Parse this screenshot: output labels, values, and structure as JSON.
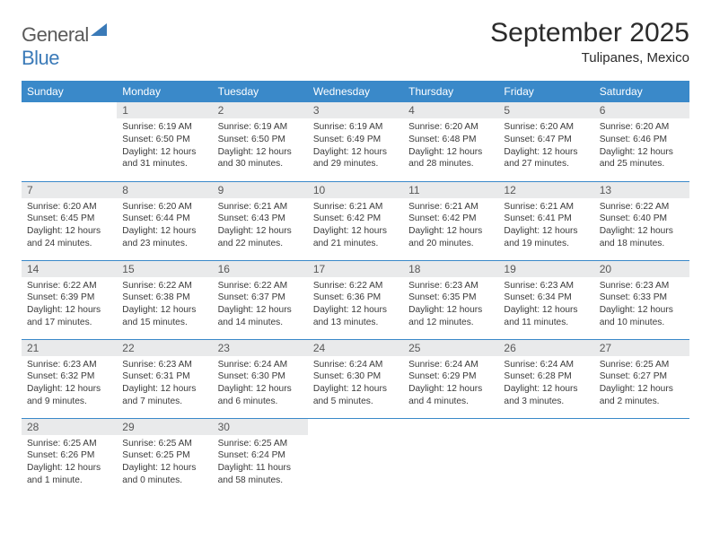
{
  "logo": {
    "text_general": "General",
    "text_blue": "Blue"
  },
  "title": "September 2025",
  "location": "Tulipanes, Mexico",
  "colors": {
    "header_bg": "#3a89c9",
    "daynum_bg": "#e9eaeb",
    "rule": "#3a89c9",
    "text": "#343434",
    "logo_blue": "#3a7ab8"
  },
  "weekdays": [
    "Sunday",
    "Monday",
    "Tuesday",
    "Wednesday",
    "Thursday",
    "Friday",
    "Saturday"
  ],
  "start_offset": 1,
  "days": [
    {
      "n": 1,
      "sunrise": "6:19 AM",
      "sunset": "6:50 PM",
      "daylight": "12 hours and 31 minutes."
    },
    {
      "n": 2,
      "sunrise": "6:19 AM",
      "sunset": "6:50 PM",
      "daylight": "12 hours and 30 minutes."
    },
    {
      "n": 3,
      "sunrise": "6:19 AM",
      "sunset": "6:49 PM",
      "daylight": "12 hours and 29 minutes."
    },
    {
      "n": 4,
      "sunrise": "6:20 AM",
      "sunset": "6:48 PM",
      "daylight": "12 hours and 28 minutes."
    },
    {
      "n": 5,
      "sunrise": "6:20 AM",
      "sunset": "6:47 PM",
      "daylight": "12 hours and 27 minutes."
    },
    {
      "n": 6,
      "sunrise": "6:20 AM",
      "sunset": "6:46 PM",
      "daylight": "12 hours and 25 minutes."
    },
    {
      "n": 7,
      "sunrise": "6:20 AM",
      "sunset": "6:45 PM",
      "daylight": "12 hours and 24 minutes."
    },
    {
      "n": 8,
      "sunrise": "6:20 AM",
      "sunset": "6:44 PM",
      "daylight": "12 hours and 23 minutes."
    },
    {
      "n": 9,
      "sunrise": "6:21 AM",
      "sunset": "6:43 PM",
      "daylight": "12 hours and 22 minutes."
    },
    {
      "n": 10,
      "sunrise": "6:21 AM",
      "sunset": "6:42 PM",
      "daylight": "12 hours and 21 minutes."
    },
    {
      "n": 11,
      "sunrise": "6:21 AM",
      "sunset": "6:42 PM",
      "daylight": "12 hours and 20 minutes."
    },
    {
      "n": 12,
      "sunrise": "6:21 AM",
      "sunset": "6:41 PM",
      "daylight": "12 hours and 19 minutes."
    },
    {
      "n": 13,
      "sunrise": "6:22 AM",
      "sunset": "6:40 PM",
      "daylight": "12 hours and 18 minutes."
    },
    {
      "n": 14,
      "sunrise": "6:22 AM",
      "sunset": "6:39 PM",
      "daylight": "12 hours and 17 minutes."
    },
    {
      "n": 15,
      "sunrise": "6:22 AM",
      "sunset": "6:38 PM",
      "daylight": "12 hours and 15 minutes."
    },
    {
      "n": 16,
      "sunrise": "6:22 AM",
      "sunset": "6:37 PM",
      "daylight": "12 hours and 14 minutes."
    },
    {
      "n": 17,
      "sunrise": "6:22 AM",
      "sunset": "6:36 PM",
      "daylight": "12 hours and 13 minutes."
    },
    {
      "n": 18,
      "sunrise": "6:23 AM",
      "sunset": "6:35 PM",
      "daylight": "12 hours and 12 minutes."
    },
    {
      "n": 19,
      "sunrise": "6:23 AM",
      "sunset": "6:34 PM",
      "daylight": "12 hours and 11 minutes."
    },
    {
      "n": 20,
      "sunrise": "6:23 AM",
      "sunset": "6:33 PM",
      "daylight": "12 hours and 10 minutes."
    },
    {
      "n": 21,
      "sunrise": "6:23 AM",
      "sunset": "6:32 PM",
      "daylight": "12 hours and 9 minutes."
    },
    {
      "n": 22,
      "sunrise": "6:23 AM",
      "sunset": "6:31 PM",
      "daylight": "12 hours and 7 minutes."
    },
    {
      "n": 23,
      "sunrise": "6:24 AM",
      "sunset": "6:30 PM",
      "daylight": "12 hours and 6 minutes."
    },
    {
      "n": 24,
      "sunrise": "6:24 AM",
      "sunset": "6:30 PM",
      "daylight": "12 hours and 5 minutes."
    },
    {
      "n": 25,
      "sunrise": "6:24 AM",
      "sunset": "6:29 PM",
      "daylight": "12 hours and 4 minutes."
    },
    {
      "n": 26,
      "sunrise": "6:24 AM",
      "sunset": "6:28 PM",
      "daylight": "12 hours and 3 minutes."
    },
    {
      "n": 27,
      "sunrise": "6:25 AM",
      "sunset": "6:27 PM",
      "daylight": "12 hours and 2 minutes."
    },
    {
      "n": 28,
      "sunrise": "6:25 AM",
      "sunset": "6:26 PM",
      "daylight": "12 hours and 1 minute."
    },
    {
      "n": 29,
      "sunrise": "6:25 AM",
      "sunset": "6:25 PM",
      "daylight": "12 hours and 0 minutes."
    },
    {
      "n": 30,
      "sunrise": "6:25 AM",
      "sunset": "6:24 PM",
      "daylight": "11 hours and 58 minutes."
    }
  ],
  "labels": {
    "sunrise": "Sunrise:",
    "sunset": "Sunset:",
    "daylight": "Daylight:"
  }
}
